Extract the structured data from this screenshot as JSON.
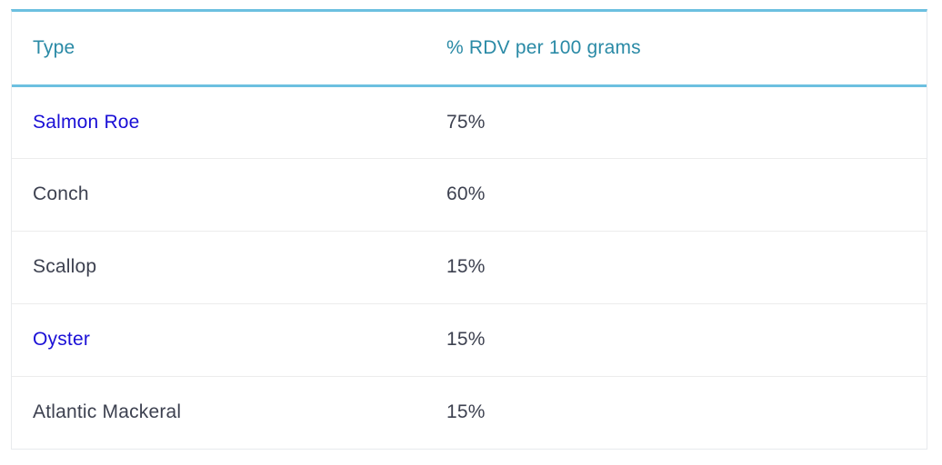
{
  "table": {
    "headers": [
      "Type",
      "% RDV per 100 grams"
    ],
    "rows": [
      {
        "type": "Salmon Roe",
        "rdv": "75%",
        "is_link": true
      },
      {
        "type": "Conch",
        "rdv": "60%",
        "is_link": false
      },
      {
        "type": "Scallop",
        "rdv": "15%",
        "is_link": false
      },
      {
        "type": "Oyster",
        "rdv": "15%",
        "is_link": true
      },
      {
        "type": "Atlantic Mackeral",
        "rdv": "15%",
        "is_link": false
      }
    ]
  },
  "colors": {
    "header_text": "#2a8aa6",
    "accent_border": "#6cc0e0",
    "body_text": "#3d4150",
    "link_text": "#1a0fd6"
  }
}
